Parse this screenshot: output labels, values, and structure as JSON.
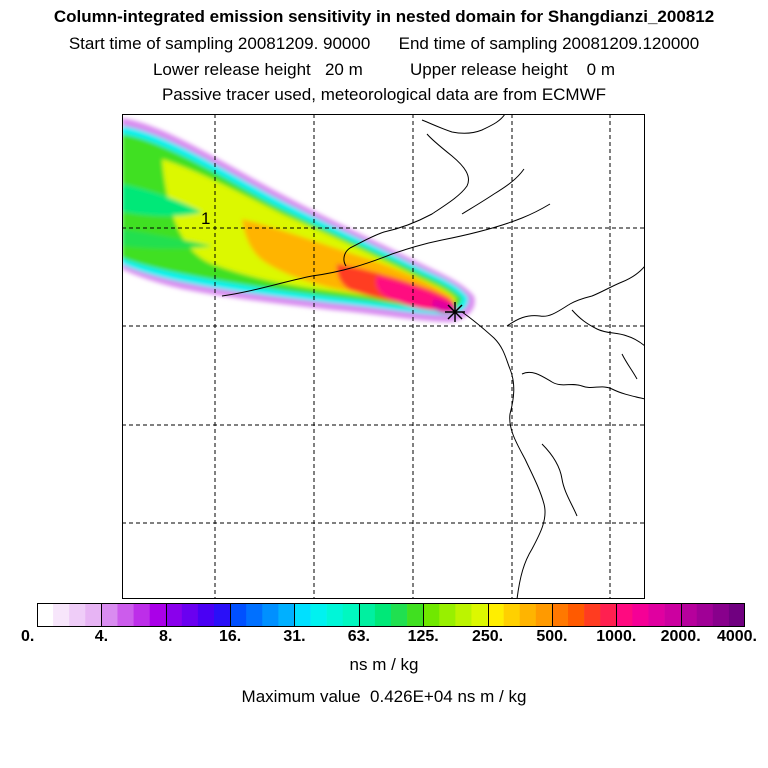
{
  "header": {
    "title": "Column-integrated emission sensitivity in nested domain for Shangdianzi_200812",
    "sampling_line": "Start time of sampling 20081209. 90000      End time of sampling 20081209.120000",
    "height_line": "Lower release height   20 m          Upper release height    0 m",
    "tracer_line": "Passive tracer used, meteorological data are from ECMWF"
  },
  "map": {
    "contour_label": "1",
    "receptor_marker": "receptor-star-icon"
  },
  "colorbar": {
    "tick_labels": [
      "0.",
      "4.",
      "8.",
      "16.",
      "31.",
      "63.",
      "125.",
      "250.",
      "500.",
      "1000.",
      "2000.",
      "4000."
    ],
    "colors": [
      "#ffffff",
      "#f7e6fb",
      "#efcdf8",
      "#e7b4f4",
      "#d98cf0",
      "#cc5cec",
      "#bd2ee9",
      "#aa00e8",
      "#8a00ec",
      "#6a00f0",
      "#4a00f4",
      "#2a10f8",
      "#0050ff",
      "#0070ff",
      "#0090ff",
      "#00b0ff",
      "#00e0ff",
      "#00f2f0",
      "#00f6d8",
      "#00f8c0",
      "#00f0a0",
      "#00e878",
      "#20e050",
      "#40e020",
      "#70e800",
      "#98f000",
      "#bcf400",
      "#dcf800",
      "#ffee00",
      "#ffd000",
      "#ffb400",
      "#ff9a00",
      "#ff7800",
      "#ff5a00",
      "#ff3c20",
      "#ff2050",
      "#ff0a80",
      "#f50096",
      "#e000a0",
      "#cc00a0",
      "#b6009c",
      "#a00096",
      "#88008c",
      "#700080"
    ],
    "units": "ns m / kg",
    "max_value_text": "Maximum value  0.426E+04 ns m / kg"
  },
  "colors": {
    "frame": "#000000",
    "coast": "#000000",
    "grid": "#000000"
  }
}
